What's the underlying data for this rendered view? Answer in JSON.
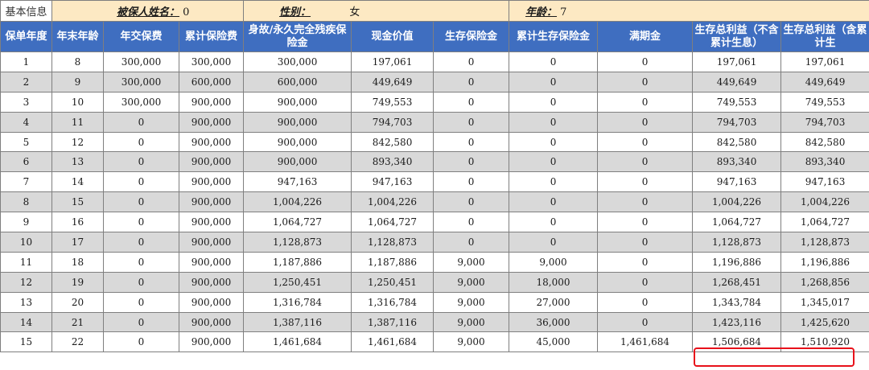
{
  "info": {
    "label": "基本信息",
    "name_label": "被保人姓名：",
    "name_value": "0",
    "gender_label": "性别：",
    "gender_value": "女",
    "age_label": "年龄：",
    "age_value": "7"
  },
  "columns": [
    "保单年度",
    "年末年龄",
    "年交保费",
    "累计保险费",
    "身故/永久完全残疾保险金",
    "现金价值",
    "生存保险金",
    "累计生存保险金",
    "满期金",
    "生存总利益（不含累计生息）",
    "生存总利益（含累计生"
  ],
  "rows": [
    [
      "1",
      "8",
      "300,000",
      "300,000",
      "300,000",
      "197,061",
      "0",
      "0",
      "0",
      "197,061",
      "197,061"
    ],
    [
      "2",
      "9",
      "300,000",
      "600,000",
      "600,000",
      "449,649",
      "0",
      "0",
      "0",
      "449,649",
      "449,649"
    ],
    [
      "3",
      "10",
      "300,000",
      "900,000",
      "900,000",
      "749,553",
      "0",
      "0",
      "0",
      "749,553",
      "749,553"
    ],
    [
      "4",
      "11",
      "0",
      "900,000",
      "900,000",
      "794,703",
      "0",
      "0",
      "0",
      "794,703",
      "794,703"
    ],
    [
      "5",
      "12",
      "0",
      "900,000",
      "900,000",
      "842,580",
      "0",
      "0",
      "0",
      "842,580",
      "842,580"
    ],
    [
      "6",
      "13",
      "0",
      "900,000",
      "900,000",
      "893,340",
      "0",
      "0",
      "0",
      "893,340",
      "893,340"
    ],
    [
      "7",
      "14",
      "0",
      "900,000",
      "947,163",
      "947,163",
      "0",
      "0",
      "0",
      "947,163",
      "947,163"
    ],
    [
      "8",
      "15",
      "0",
      "900,000",
      "1,004,226",
      "1,004,226",
      "0",
      "0",
      "0",
      "1,004,226",
      "1,004,226"
    ],
    [
      "9",
      "16",
      "0",
      "900,000",
      "1,064,727",
      "1,064,727",
      "0",
      "0",
      "0",
      "1,064,727",
      "1,064,727"
    ],
    [
      "10",
      "17",
      "0",
      "900,000",
      "1,128,873",
      "1,128,873",
      "0",
      "0",
      "0",
      "1,128,873",
      "1,128,873"
    ],
    [
      "11",
      "18",
      "0",
      "900,000",
      "1,187,886",
      "1,187,886",
      "9,000",
      "9,000",
      "0",
      "1,196,886",
      "1,196,886"
    ],
    [
      "12",
      "19",
      "0",
      "900,000",
      "1,250,451",
      "1,250,451",
      "9,000",
      "18,000",
      "0",
      "1,268,451",
      "1,268,856"
    ],
    [
      "13",
      "20",
      "0",
      "900,000",
      "1,316,784",
      "1,316,784",
      "9,000",
      "27,000",
      "0",
      "1,343,784",
      "1,345,017"
    ],
    [
      "14",
      "21",
      "0",
      "900,000",
      "1,387,116",
      "1,387,116",
      "9,000",
      "36,000",
      "0",
      "1,423,116",
      "1,425,620"
    ],
    [
      "15",
      "22",
      "0",
      "900,000",
      "1,461,684",
      "1,461,684",
      "9,000",
      "45,000",
      "1,461,684",
      "1,506,684",
      "1,510,920"
    ]
  ],
  "colors": {
    "header_bg": "#3f6ec0",
    "info_bg": "#fde9c3",
    "shade_bg": "#d9d9d9",
    "highlight_border": "#e8111a"
  }
}
